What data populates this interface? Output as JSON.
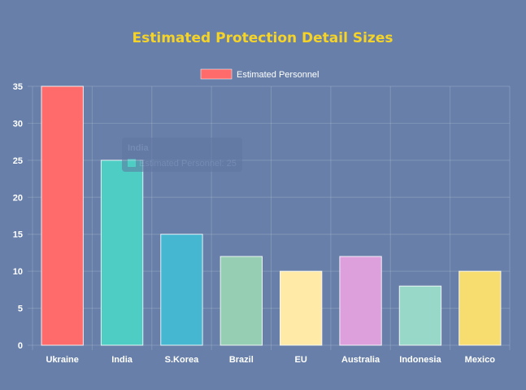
{
  "chart_data": {
    "type": "bar",
    "title": "Estimated Protection Detail Sizes",
    "categories": [
      "Ukraine",
      "India",
      "S.Korea",
      "Brazil",
      "EU",
      "Australia",
      "Indonesia",
      "Mexico"
    ],
    "series": [
      {
        "name": "Estimated Personnel",
        "values": [
          35,
          25,
          15,
          12,
          10,
          12,
          8,
          10
        ]
      }
    ],
    "bar_colors": [
      "#ff6b6b",
      "#4ecdc4",
      "#45b7d1",
      "#96ceb4",
      "#ffeaa7",
      "#dda0dd",
      "#98d8c8",
      "#f7dc6f"
    ],
    "ylim": [
      0,
      35
    ],
    "yticks": [
      0,
      5,
      10,
      15,
      20,
      25,
      30,
      35
    ],
    "grid": true,
    "legend_position": "top",
    "legend_color": "#ff6b6b",
    "tooltip": {
      "title": "India",
      "label": "Estimated Personnel: 25",
      "swatch_color": "#4ecdc4"
    }
  }
}
